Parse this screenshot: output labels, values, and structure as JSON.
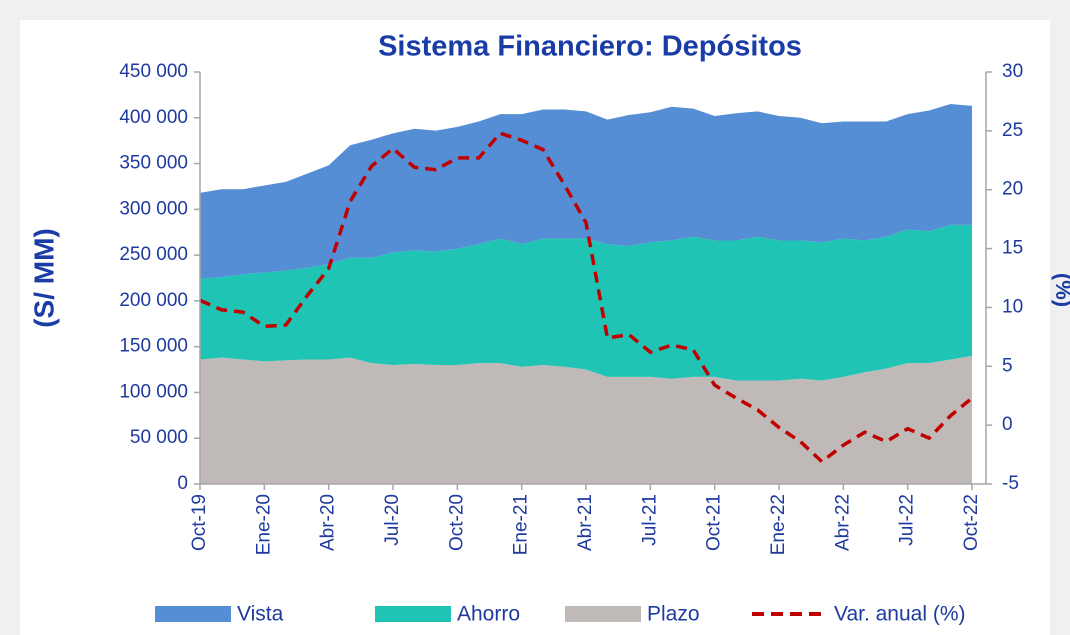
{
  "chart_data": {
    "type": "stacked_area_line",
    "title": "Sistema Financiero: Depósitos",
    "y_label": "(S/ MM)",
    "y2_label": "(%)",
    "categories": [
      "Oct-19",
      null,
      null,
      "Ene-20",
      null,
      null,
      "Abr-20",
      null,
      null,
      "Jul-20",
      null,
      null,
      "Oct-20",
      null,
      null,
      "Ene-21",
      null,
      null,
      "Abr-21",
      null,
      null,
      "Jul-21",
      null,
      null,
      "Oct-21",
      null,
      null,
      "Ene-22",
      null,
      null,
      "Abr-22",
      null,
      null,
      "Jul-22",
      null,
      null,
      "Oct-22"
    ],
    "series": [
      {
        "name": "Plazo",
        "color": "#bfb9b7",
        "kind": "area",
        "values": [
          136000,
          138000,
          136000,
          134000,
          135000,
          136000,
          136000,
          138000,
          132000,
          130000,
          131000,
          130000,
          130000,
          132000,
          132000,
          128000,
          130000,
          128000,
          125000,
          117000,
          117000,
          117000,
          115000,
          117000,
          117000,
          113000,
          113000,
          113000,
          115000,
          113000,
          117000,
          122000,
          126000,
          132000,
          132000,
          136000,
          140000
        ]
      },
      {
        "name": "Ahorro",
        "color": "#20c4b4",
        "kind": "area",
        "values": [
          88000,
          88000,
          93000,
          97000,
          98000,
          100000,
          104000,
          109000,
          115000,
          123000,
          124000,
          124000,
          127000,
          130000,
          136000,
          134000,
          138000,
          140000,
          143000,
          145000,
          143000,
          147000,
          151000,
          153000,
          149000,
          153000,
          157000,
          153000,
          151000,
          151000,
          151000,
          144000,
          144000,
          146000,
          144000,
          147000,
          143000
        ]
      },
      {
        "name": "Vista",
        "color": "#558ed5",
        "kind": "area",
        "values": [
          94000,
          96000,
          93000,
          95000,
          97000,
          103000,
          108000,
          123000,
          129000,
          130000,
          133000,
          132000,
          133000,
          134000,
          136000,
          142000,
          141000,
          141000,
          139000,
          136000,
          143000,
          142000,
          146000,
          140000,
          136000,
          139000,
          137000,
          136000,
          134000,
          130000,
          128000,
          130000,
          126000,
          126000,
          132000,
          132000,
          130000
        ]
      },
      {
        "name": "Var. anual (%)",
        "color": "#c00000",
        "kind": "line",
        "axis": "y2",
        "values": [
          10.6,
          9.8,
          9.6,
          8.4,
          8.5,
          11,
          13.3,
          19,
          22,
          23.5,
          21.9,
          21.7,
          22.7,
          22.7,
          24.8,
          24.2,
          23.4,
          20.4,
          17.2,
          7.4,
          7.7,
          6.2,
          6.8,
          6.4,
          3.4,
          2.3,
          1.3,
          -0.2,
          -1.4,
          -3.1,
          -1.7,
          -0.6,
          -1.4,
          -0.3,
          -1.1,
          0.8,
          2.3
        ]
      }
    ],
    "legend_order": [
      2,
      1,
      0,
      3
    ],
    "ylim": [
      0,
      450000
    ],
    "yticks": [
      0,
      {
        "value": 50000,
        "label": "50 000"
      },
      {
        "value": 100000,
        "label": "100 000"
      },
      {
        "value": 150000,
        "label": "150 000"
      },
      {
        "value": 200000,
        "label": "200 000"
      },
      {
        "value": 250000,
        "label": "250 000"
      },
      {
        "value": 300000,
        "label": "300 000"
      },
      {
        "value": 350000,
        "label": "350 000"
      },
      {
        "value": 400000,
        "label": "400 000"
      },
      {
        "value": 450000,
        "label": "450 000"
      }
    ],
    "y2lim": [
      -5,
      30
    ],
    "y2ticks": [
      -5,
      0,
      5,
      10,
      15,
      20,
      25,
      30
    ],
    "legend": "bottom"
  }
}
